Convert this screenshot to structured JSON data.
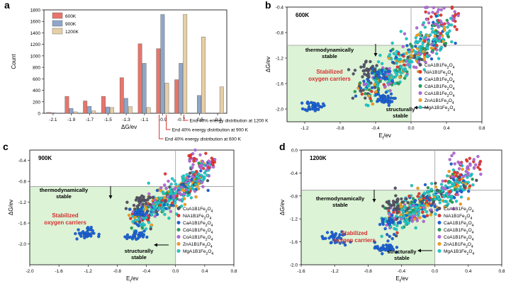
{
  "chart_data": [
    {
      "panel": "a",
      "type": "bar",
      "xlabel": "ΔG/ev",
      "ylabel": "Count",
      "ylim": [
        0,
        1800
      ],
      "yticks": [
        0,
        200,
        400,
        600,
        800,
        1000,
        1200,
        1400,
        1600,
        1800
      ],
      "categories": [
        "-2.1",
        "-1.9",
        "-1.7",
        "-1.5",
        "-1.3",
        "-1.1",
        "-0.9",
        "-0.7",
        "-0.5",
        "-0.3"
      ],
      "series": [
        {
          "name": "600K",
          "color": "#e8756a",
          "values": [
            15,
            295,
            215,
            295,
            620,
            1210,
            1125,
            585,
            0,
            0
          ]
        },
        {
          "name": "900K",
          "color": "#8fa6c9",
          "values": [
            10,
            85,
            120,
            110,
            260,
            870,
            1720,
            870,
            310,
            0
          ]
        },
        {
          "name": "1200K",
          "color": "#e6cfa6",
          "values": [
            5,
            25,
            40,
            100,
            115,
            100,
            525,
            1720,
            1330,
            460
          ]
        }
      ],
      "annotations": [
        "End 40% energy distribution at 1200 K",
        "End 40% energy distribution at 900 K",
        "End 40% energy distribution at 600 K"
      ]
    },
    {
      "panel": "b",
      "type": "scatter",
      "temperature": "600K",
      "xlabel": "Eₑ/ev",
      "ylabel": "ΔG/ev",
      "xlim": [
        -1.4,
        0.8
      ],
      "ylim": [
        -2.2,
        -0.4
      ],
      "xticks": [
        "-1.2",
        "-0.8",
        "-0.4",
        "0.0",
        "0.4",
        "0.8"
      ],
      "yticks": [
        "-0.4",
        "-0.8",
        "-1.2",
        "-1.6",
        "-2.0"
      ],
      "hline": -1.0,
      "vline": 0.0,
      "text": {
        "thermo": "thermodynamically stable",
        "struct": "structurally stable",
        "stab": "Stabilized oxygen carriers"
      }
    },
    {
      "panel": "c",
      "type": "scatter",
      "temperature": "900K",
      "xlabel": "Eₑ/ev",
      "ylabel": "ΔG/ev",
      "xlim": [
        -2.0,
        0.8
      ],
      "ylim": [
        -2.4,
        -0.2
      ],
      "xticks": [
        "-2.0",
        "-1.6",
        "-1.2",
        "-0.8",
        "-0.4",
        "0.0",
        "0.4",
        "0.8"
      ],
      "yticks": [
        "-0.4",
        "-0.8",
        "-1.2",
        "-1.6",
        "-2.0"
      ],
      "hline": -0.9,
      "vline": 0.0,
      "text": {
        "thermo": "thermodynamically stable",
        "struct": "structurally stable",
        "stab": "Stabilized oxygen carriers"
      }
    },
    {
      "panel": "d",
      "type": "scatter",
      "temperature": "1200K",
      "xlabel": "Eₑ/ev",
      "ylabel": "ΔG/ev",
      "xlim": [
        -1.6,
        0.8
      ],
      "ylim": [
        -2.0,
        0.0
      ],
      "xticks": [
        "-1.6",
        "-1.2",
        "-0.8",
        "-0.4",
        "0.0",
        "0.4",
        "0.8"
      ],
      "yticks": [
        "0.0",
        "-0.4",
        "-0.8",
        "-1.2",
        "-1.6",
        "-2.0"
      ],
      "hline": -0.7,
      "vline": 0.0,
      "text": {
        "thermo": "thermodynamically stable",
        "struct": "structurally stable",
        "stab": "Stabilized oxygen carriers"
      }
    }
  ],
  "legend_scatter": [
    {
      "name": "CuA1B1Fe₂O₄",
      "color": "#555566"
    },
    {
      "name": "NiA1B1Fe₂O₄",
      "color": "#e53935"
    },
    {
      "name": "CaA1B1Fe₂O₄",
      "color": "#1e63d6"
    },
    {
      "name": "CdA1B1Fe₂O₄",
      "color": "#27a05a"
    },
    {
      "name": "CoA1B1Fe₂O₄",
      "color": "#b36ad9"
    },
    {
      "name": "ZnA1B1Fe₂O₄",
      "color": "#f0a020"
    },
    {
      "name": "MgA1B1Fe₂O₄",
      "color": "#22c8c8"
    }
  ],
  "panel_letters": [
    "a",
    "b",
    "c",
    "d"
  ]
}
